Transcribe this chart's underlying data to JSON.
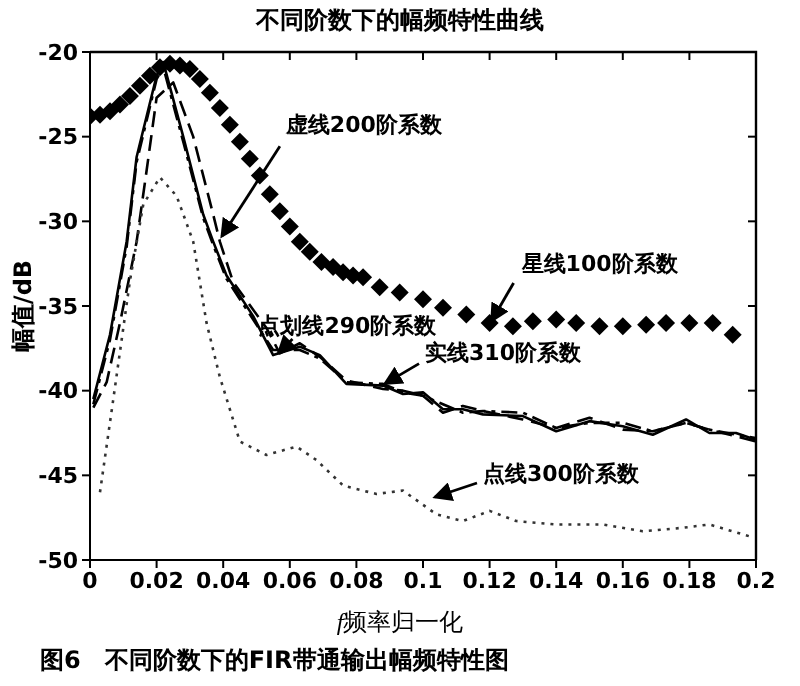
{
  "chart_data": {
    "type": "line",
    "title": "不同阶数下的幅频特性曲线",
    "xlabel": "f频率归一化",
    "ylabel": "幅值/dB",
    "xlim": [
      0,
      0.2
    ],
    "ylim": [
      -50,
      -20
    ],
    "xticks": [
      0,
      0.02,
      0.04,
      0.06,
      0.08,
      0.1,
      0.12,
      0.14,
      0.16,
      0.18,
      0.2
    ],
    "yticks": [
      -50,
      -45,
      -40,
      -35,
      -30,
      -25,
      -20
    ],
    "series": [
      {
        "type": "scatter",
        "marker": "diamond",
        "color": "#000000",
        "x": [
          0,
          0.003,
          0.006,
          0.009,
          0.012,
          0.015,
          0.018,
          0.021,
          0.024,
          0.027,
          0.03,
          0.033,
          0.036,
          0.039,
          0.042,
          0.045,
          0.048,
          0.051,
          0.054,
          0.057,
          0.06,
          0.063,
          0.066,
          0.0695,
          0.073,
          0.076,
          0.079,
          0.082,
          0.087,
          0.093,
          0.1,
          0.106,
          0.113,
          0.12,
          0.127,
          0.133,
          0.14,
          0.146,
          0.153,
          0.16,
          0.167,
          0.173,
          0.18,
          0.187,
          0.193
        ],
        "values": [
          -23.8,
          -23.7,
          -23.5,
          -23.1,
          -22.6,
          -22,
          -21.4,
          -20.9,
          -20.7,
          -20.8,
          -21,
          -21.6,
          -22.4,
          -23.3,
          -24.3,
          -25.3,
          -26.3,
          -27.3,
          -28.4,
          -29.4,
          -30.3,
          -31.2,
          -31.8,
          -32.4,
          -32.7,
          -33,
          -33.2,
          -33.3,
          -33.9,
          -34.2,
          -34.6,
          -35.1,
          -35.5,
          -36,
          -36.2,
          -35.9,
          -35.8,
          -36,
          -36.2,
          -36.2,
          -36.1,
          -36,
          -36,
          -36,
          -36.7
        ]
      },
      {
        "line_style": "dashed",
        "color": "#000000",
        "x": [
          0.001,
          0.005,
          0.009,
          0.014,
          0.017,
          0.02,
          0.025,
          0.031,
          0.037,
          0.039,
          0.043,
          0.053,
          0.057,
          0.063,
          0.069,
          0.077,
          0.088,
          0.094,
          0.1,
          0.106,
          0.112,
          0.118,
          0.13,
          0.14,
          0.15,
          0.16,
          0.169,
          0.179,
          0.186,
          0.194,
          0.2
        ],
        "values": [
          -41,
          -39.5,
          -36,
          -31.2,
          -27,
          -22.7,
          -21.8,
          -25,
          -29.6,
          -31.2,
          -33.6,
          -36.3,
          -37.8,
          -37.2,
          -38,
          -39.4,
          -39.9,
          -40,
          -40.3,
          -41.3,
          -40.9,
          -41.2,
          -41.7,
          -42.2,
          -41.6,
          -42.3,
          -42.4,
          -41.9,
          -42.3,
          -42.7,
          -43
        ]
      },
      {
        "line_style": "dashdot",
        "color": "#000000",
        "x": [
          0.001,
          0.006,
          0.011,
          0.014,
          0.02,
          0.022,
          0.028,
          0.034,
          0.037,
          0.041,
          0.049,
          0.055,
          0.063,
          0.069,
          0.077,
          0.088,
          0.094,
          0.1,
          0.106,
          0.112,
          0.118,
          0.13,
          0.14,
          0.15,
          0.16,
          0.169,
          0.179,
          0.186,
          0.194,
          0.2
        ],
        "values": [
          -40.8,
          -37,
          -31.5,
          -26.5,
          -21.6,
          -20.9,
          -25.3,
          -29.8,
          -31.4,
          -33.4,
          -35.8,
          -37.6,
          -37.6,
          -38.1,
          -39.5,
          -39.6,
          -40.1,
          -40.3,
          -40.8,
          -41.3,
          -41.2,
          -41.3,
          -42.2,
          -41.9,
          -41.9,
          -42.4,
          -41.9,
          -42.3,
          -42.6,
          -42.8
        ]
      },
      {
        "line_style": "solid",
        "color": "#000000",
        "x": [
          0.001,
          0.006,
          0.011,
          0.014,
          0.02,
          0.022,
          0.028,
          0.034,
          0.037,
          0.041,
          0.049,
          0.055,
          0.063,
          0.069,
          0.077,
          0.088,
          0.094,
          0.1,
          0.106,
          0.112,
          0.118,
          0.13,
          0.14,
          0.15,
          0.16,
          0.169,
          0.179,
          0.186,
          0.194,
          0.2
        ],
        "values": [
          -40.5,
          -36.7,
          -31.2,
          -26.2,
          -21.4,
          -20.6,
          -25,
          -29.6,
          -31.2,
          -33.2,
          -35.6,
          -37.9,
          -37.4,
          -37.9,
          -39.6,
          -39.7,
          -40.2,
          -40.1,
          -41.1,
          -41.1,
          -41.4,
          -41.5,
          -42.4,
          -41.8,
          -42.1,
          -42.6,
          -41.7,
          -42.5,
          -42.5,
          -42.9
        ]
      },
      {
        "line_style": "dotted",
        "color": "#333333",
        "x": [
          0.003,
          0.007,
          0.012,
          0.016,
          0.021,
          0.026,
          0.031,
          0.035,
          0.039,
          0.045,
          0.053,
          0.062,
          0.068,
          0.076,
          0.086,
          0.094,
          0.104,
          0.112,
          0.12,
          0.128,
          0.14,
          0.154,
          0.166,
          0.178,
          0.186,
          0.198
        ],
        "values": [
          -46,
          -40.5,
          -33.5,
          -29,
          -27.4,
          -28.5,
          -31.2,
          -36,
          -39.2,
          -43,
          -43.8,
          -43.3,
          -44.1,
          -45.6,
          -46.1,
          -45.9,
          -47.3,
          -47.7,
          -47.1,
          -47.7,
          -47.9,
          -47.9,
          -48.3,
          -48.1,
          -47.9,
          -48.6
        ]
      }
    ],
    "annotations": [
      {
        "text": "虚线200阶系数",
        "x": 0.039,
        "y": -31
      },
      {
        "text": "星线100阶系数",
        "x": 0.12,
        "y": -36
      },
      {
        "text": "点划线290阶系数",
        "x": 0.056,
        "y": -37.9
      },
      {
        "text": "实线310阶系数",
        "x": 0.088,
        "y": -39.7
      },
      {
        "text": "点线300阶系数",
        "x": 0.103,
        "y": -46.4
      },
      "图6　不同阶数下的FIR带通输出幅频特性图"
    ]
  }
}
